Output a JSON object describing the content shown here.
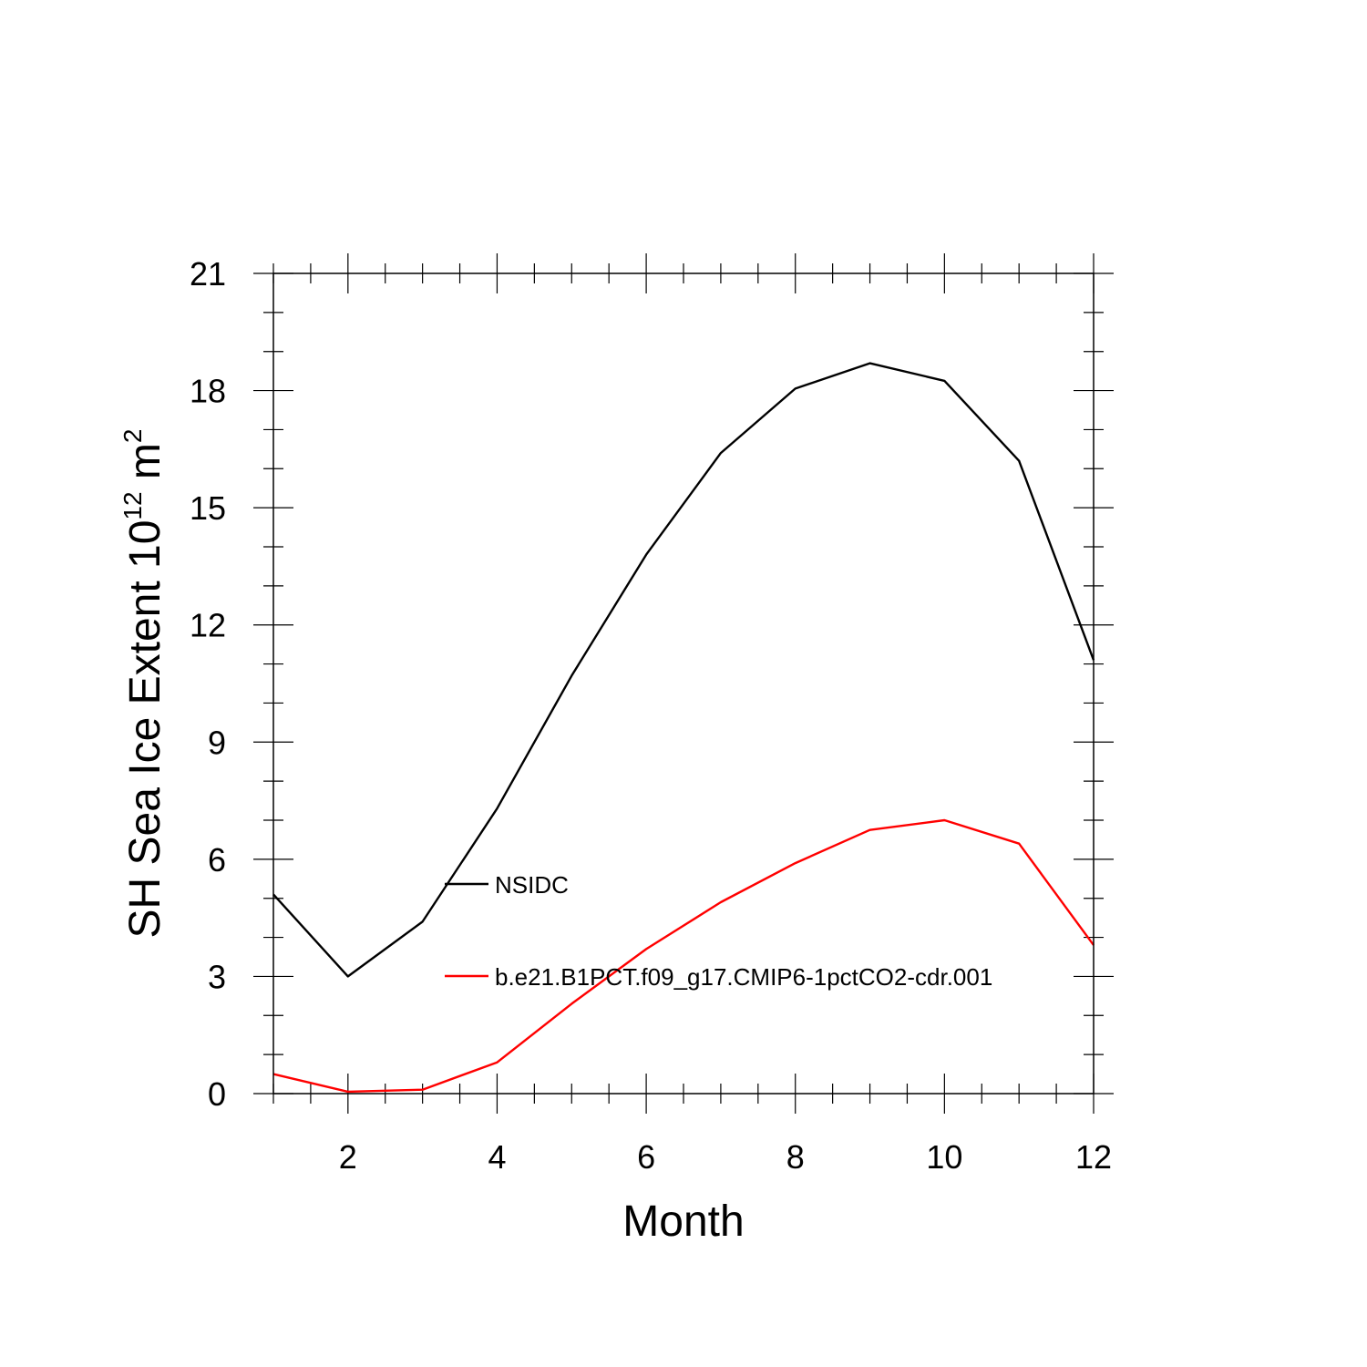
{
  "chart_data": {
    "type": "line",
    "title": "",
    "xlabel": "Month",
    "ylabel": {
      "main": "SH Sea Ice Extent 10",
      "sup1": "12",
      "unit": " m",
      "sup2": "2"
    },
    "xlim": [
      1,
      12
    ],
    "ylim": [
      0,
      21
    ],
    "xticks": [
      2,
      4,
      6,
      8,
      10,
      12
    ],
    "yticks": [
      0,
      3,
      6,
      9,
      12,
      15,
      18,
      21
    ],
    "grid": false,
    "legend_position": "inside-center",
    "x": [
      1,
      2,
      3,
      4,
      5,
      6,
      7,
      8,
      9,
      10,
      11,
      12
    ],
    "series": [
      {
        "name": "NSIDC",
        "color": "#000000",
        "values": [
          5.1,
          3.0,
          4.4,
          7.3,
          10.7,
          13.8,
          16.4,
          18.05,
          18.7,
          18.25,
          16.2,
          11.1
        ]
      },
      {
        "name": "b.e21.B1PCT.f09_g17.CMIP6-1pctCO2-cdr.001",
        "color": "#ff0000",
        "values": [
          0.5,
          0.05,
          0.1,
          0.8,
          2.3,
          3.7,
          4.9,
          5.9,
          6.75,
          7.0,
          6.4,
          3.8
        ]
      }
    ]
  }
}
